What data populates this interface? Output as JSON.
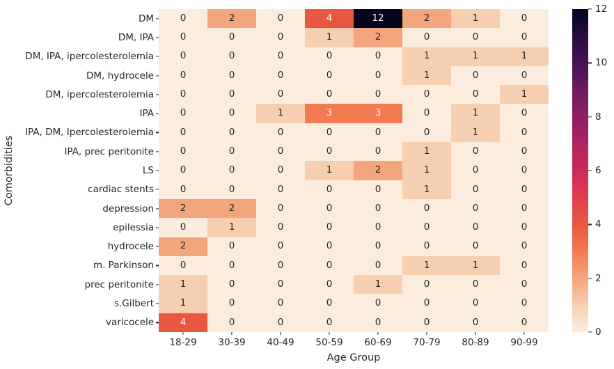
{
  "figure": {
    "background": "#ffffff"
  },
  "chart_data": {
    "type": "heatmap",
    "title": "",
    "xlabel": "Age Group",
    "ylabel": "Comorbidities",
    "x_categories": [
      "18-29",
      "30-39",
      "40-49",
      "50-59",
      "60-69",
      "70-79",
      "80-89",
      "90-99"
    ],
    "y_categories": [
      "DM",
      "DM, IPA",
      "DM, IPA, ipercolesterolemia",
      "DM, hydrocele",
      "DM, ipercolesterolemia",
      "IPA",
      "IPA, DM, Ipercolesterolemia",
      "IPA, prec peritonite",
      "LS",
      "cardiac stents",
      "depression",
      "epilessia",
      "hydrocele",
      "m. Parkinson",
      "prec peritonite",
      "s.Gilbert",
      "varicocele"
    ],
    "values": [
      [
        0,
        2,
        0,
        4,
        12,
        2,
        1,
        0
      ],
      [
        0,
        0,
        0,
        1,
        2,
        0,
        0,
        0
      ],
      [
        0,
        0,
        0,
        0,
        0,
        1,
        1,
        1
      ],
      [
        0,
        0,
        0,
        0,
        0,
        1,
        0,
        0
      ],
      [
        0,
        0,
        0,
        0,
        0,
        0,
        0,
        1
      ],
      [
        0,
        0,
        1,
        3,
        3,
        0,
        1,
        0
      ],
      [
        0,
        0,
        0,
        0,
        0,
        0,
        1,
        0
      ],
      [
        0,
        0,
        0,
        0,
        0,
        1,
        0,
        0
      ],
      [
        0,
        0,
        0,
        1,
        2,
        1,
        0,
        0
      ],
      [
        0,
        0,
        0,
        0,
        0,
        1,
        0,
        0
      ],
      [
        2,
        2,
        0,
        0,
        0,
        0,
        0,
        0
      ],
      [
        0,
        1,
        0,
        0,
        0,
        0,
        0,
        0
      ],
      [
        2,
        0,
        0,
        0,
        0,
        0,
        0,
        0
      ],
      [
        0,
        0,
        0,
        0,
        0,
        1,
        1,
        0
      ],
      [
        1,
        0,
        0,
        0,
        1,
        0,
        0,
        0
      ],
      [
        1,
        0,
        0,
        0,
        0,
        0,
        0,
        0
      ],
      [
        4,
        0,
        0,
        0,
        0,
        0,
        0,
        0
      ]
    ],
    "annot": true,
    "vmin": 0,
    "vmax": 12,
    "colormap": "rocket_r",
    "legend_position": "right-colorbar",
    "grid": false,
    "colorbar_ticks": [
      0,
      2,
      4,
      6,
      8,
      10,
      12
    ],
    "value_colors": {
      "0": "#fbecdd",
      "1": "#f6cfb1",
      "2": "#f3a57e",
      "3": "#f37a51",
      "4": "#ea5741",
      "12": "#05051e"
    },
    "gradient_stops": [
      {
        "v": 0,
        "color": "#fcedde"
      },
      {
        "v": 1,
        "color": "#f6cfb1"
      },
      {
        "v": 2,
        "color": "#f3a57e"
      },
      {
        "v": 3,
        "color": "#f37a51"
      },
      {
        "v": 4,
        "color": "#ea5741"
      },
      {
        "v": 5,
        "color": "#df3e4d"
      },
      {
        "v": 6,
        "color": "#ca2a58"
      },
      {
        "v": 7,
        "color": "#ae2361"
      },
      {
        "v": 8,
        "color": "#8d2064"
      },
      {
        "v": 9,
        "color": "#6b1c60"
      },
      {
        "v": 10,
        "color": "#471254"
      },
      {
        "v": 11,
        "color": "#260c3f"
      },
      {
        "v": 12,
        "color": "#05051e"
      }
    ],
    "dark_text": "#262626",
    "light_text": "#f7f7f7",
    "light_text_threshold": 3
  }
}
